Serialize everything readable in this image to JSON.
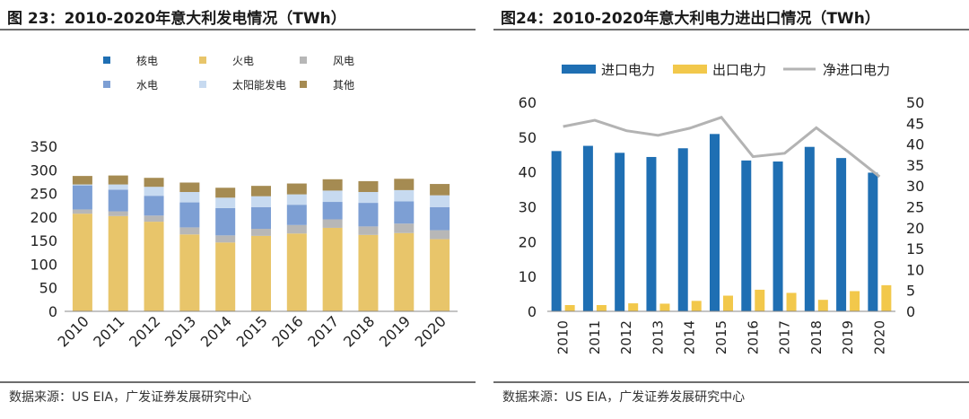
{
  "left": {
    "title": "图 23：2010-2020年意大利发电情况（TWh）",
    "source": "数据来源：US EIA，广发证券发展研究中心"
  },
  "right": {
    "title": "图24：2010-2020年意大利电力进出口情况（TWh）",
    "source": "数据来源：US EIA，广发证券发展研究中心"
  },
  "chart_data": [
    {
      "type": "bar",
      "stacked": true,
      "title": "图 23：2010-2020年意大利发电情况（TWh）",
      "categories": [
        "2010",
        "2011",
        "2012",
        "2013",
        "2014",
        "2015",
        "2016",
        "2017",
        "2018",
        "2019",
        "2020"
      ],
      "ylim": [
        0,
        350
      ],
      "yticks": [
        0,
        50,
        100,
        150,
        200,
        250,
        300,
        350
      ],
      "legend_position": "top",
      "grid": false,
      "series": [
        {
          "name": "核电",
          "color": "#1f6fb3",
          "values": [
            0,
            0,
            0,
            0,
            0,
            0,
            0,
            0,
            0,
            0,
            0
          ]
        },
        {
          "name": "火电",
          "color": "#e8c56a",
          "values": [
            207,
            202,
            190,
            163,
            146,
            160,
            165,
            177,
            162,
            166,
            153
          ]
        },
        {
          "name": "风电",
          "color": "#b7b7b7",
          "values": [
            9,
            10,
            13,
            15,
            15,
            15,
            18,
            18,
            18,
            20,
            19
          ]
        },
        {
          "name": "水电",
          "color": "#7d9fd4",
          "values": [
            51,
            46,
            42,
            53,
            58,
            46,
            43,
            37,
            50,
            47,
            49
          ]
        },
        {
          "name": "太阳能发电",
          "color": "#c7daf0",
          "values": [
            2,
            11,
            19,
            22,
            22,
            23,
            22,
            24,
            23,
            24,
            25
          ]
        },
        {
          "name": "其他",
          "color": "#a58b52",
          "values": [
            18,
            19,
            19,
            20,
            21,
            22,
            23,
            24,
            23,
            24,
            24
          ]
        }
      ]
    },
    {
      "type": "bar",
      "title": "图24：2010-2020年意大利电力进出口情况（TWh）",
      "categories": [
        "2010",
        "2011",
        "2012",
        "2013",
        "2014",
        "2015",
        "2016",
        "2017",
        "2018",
        "2019",
        "2020"
      ],
      "ylim": [
        0,
        60
      ],
      "yticks": [
        0,
        10,
        20,
        30,
        40,
        50,
        60
      ],
      "y2lim": [
        0,
        50
      ],
      "y2ticks": [
        0,
        5,
        10,
        15,
        20,
        25,
        30,
        35,
        40,
        45,
        50
      ],
      "legend_position": "top",
      "grid": false,
      "series": [
        {
          "name": "进口电力",
          "type": "bar",
          "axis": "left",
          "color": "#1f6fb3",
          "values": [
            46.0,
            47.5,
            45.5,
            44.3,
            46.8,
            50.9,
            43.3,
            43.0,
            47.2,
            44.0,
            39.8
          ]
        },
        {
          "name": "出口电力",
          "type": "bar",
          "axis": "left",
          "color": "#f2c84b",
          "values": [
            1.8,
            1.8,
            2.3,
            2.2,
            3.0,
            4.5,
            6.2,
            5.3,
            3.3,
            5.8,
            7.5
          ]
        },
        {
          "name": "净进口电力",
          "type": "line",
          "axis": "right",
          "color": "#b3b3b3",
          "values": [
            44.2,
            45.7,
            43.2,
            42.1,
            43.8,
            46.4,
            37.0,
            37.8,
            43.9,
            38.2,
            32.2
          ]
        }
      ]
    }
  ]
}
